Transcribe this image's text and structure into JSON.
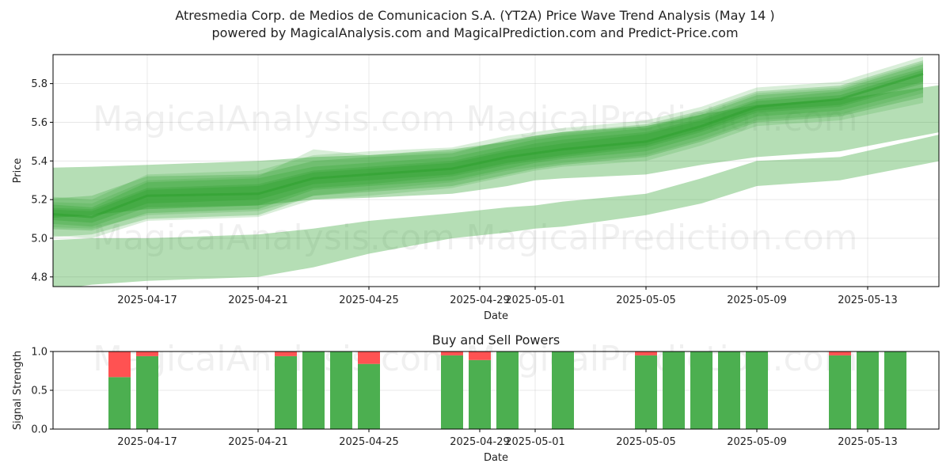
{
  "header": {
    "title": "Atresmedia Corp. de Medios de Comunicacion S.A. (YT2A) Price Wave Trend Analysis (May 14 )",
    "subtitle": "powered by MagicalAnalysis.com and MagicalPrediction.com and Predict-Price.com"
  },
  "watermarks": [
    "MagicalAnalysis.com",
    "MagicalPrediction.com"
  ],
  "colors": {
    "band": "#2ca02c",
    "buy": "#4caf50",
    "sell": "#ff5252"
  },
  "chart_data": [
    {
      "type": "area",
      "title": "",
      "xlabel": "Date",
      "ylabel": "Price",
      "x_ticks": [
        "2025-04-17",
        "2025-04-21",
        "2025-04-25",
        "2025-04-29",
        "2025-05-01",
        "2025-05-05",
        "2025-05-09",
        "2025-05-13"
      ],
      "y_ticks": [
        4.8,
        5.0,
        5.2,
        5.4,
        5.6,
        5.8
      ],
      "xlim": [
        "2025-04-12",
        "2025-05-16"
      ],
      "ylim": [
        4.75,
        5.95
      ],
      "grid": true,
      "x": [
        "2025-04-13",
        "2025-04-15",
        "2025-04-17",
        "2025-04-21",
        "2025-04-23",
        "2025-04-25",
        "2025-04-28",
        "2025-04-30",
        "2025-05-01",
        "2025-05-02",
        "2025-05-05",
        "2025-05-07",
        "2025-05-09",
        "2025-05-12",
        "2025-05-15"
      ],
      "center": [
        5.13,
        5.11,
        5.22,
        5.23,
        5.31,
        5.33,
        5.36,
        5.42,
        5.44,
        5.46,
        5.5,
        5.58,
        5.68,
        5.72,
        5.85
      ],
      "bands": [
        {
          "x_range": [
            "2025-04-12",
            "2025-05-16"
          ],
          "lower": [
            4.7,
            4.76,
            4.78,
            4.8,
            4.85,
            4.92,
            5.0,
            5.03,
            5.05,
            5.06,
            5.12,
            5.18,
            5.27,
            5.3,
            5.41
          ],
          "upper": [
            4.98,
            5.0,
            5.0,
            5.02,
            5.05,
            5.09,
            5.13,
            5.16,
            5.17,
            5.19,
            5.23,
            5.31,
            5.4,
            5.42,
            5.55
          ],
          "opacity": 0.35
        },
        {
          "x_range": [
            "2025-04-12",
            "2025-05-16"
          ],
          "lower": [
            5.09,
            5.12,
            5.15,
            5.17,
            5.2,
            5.21,
            5.23,
            5.27,
            5.3,
            5.31,
            5.33,
            5.38,
            5.42,
            5.45,
            5.56
          ],
          "upper": [
            5.36,
            5.37,
            5.38,
            5.4,
            5.42,
            5.43,
            5.46,
            5.5,
            5.53,
            5.55,
            5.58,
            5.64,
            5.69,
            5.72,
            5.8
          ],
          "opacity": 0.35
        },
        {
          "x_range": [
            "2025-04-13",
            "2025-05-15"
          ],
          "lower": [
            5.0,
            5.02,
            5.1,
            5.12,
            5.22,
            5.24,
            5.27,
            5.33,
            5.36,
            5.38,
            5.42,
            5.5,
            5.6,
            5.63,
            5.73
          ],
          "upper": [
            5.2,
            5.22,
            5.32,
            5.33,
            5.4,
            5.42,
            5.44,
            5.51,
            5.53,
            5.55,
            5.59,
            5.66,
            5.76,
            5.79,
            5.92
          ],
          "opacity": 0.25
        },
        {
          "x_range": [
            "2025-04-13",
            "2025-05-15"
          ],
          "lower": [
            5.05,
            5.04,
            5.13,
            5.15,
            5.25,
            5.27,
            5.3,
            5.36,
            5.39,
            5.41,
            5.45,
            5.53,
            5.63,
            5.66,
            5.77
          ],
          "upper": [
            5.18,
            5.16,
            5.29,
            5.31,
            5.37,
            5.39,
            5.42,
            5.48,
            5.51,
            5.53,
            5.57,
            5.64,
            5.74,
            5.77,
            5.9
          ],
          "opacity": 0.25
        },
        {
          "x_range": [
            "2025-04-13",
            "2025-05-15"
          ],
          "lower": [
            5.08,
            5.06,
            5.16,
            5.17,
            5.26,
            5.28,
            5.32,
            5.38,
            5.4,
            5.42,
            5.47,
            5.55,
            5.65,
            5.68,
            5.8
          ],
          "upper": [
            5.16,
            5.15,
            5.26,
            5.28,
            5.35,
            5.37,
            5.4,
            5.46,
            5.49,
            5.51,
            5.55,
            5.62,
            5.72,
            5.76,
            5.88
          ],
          "opacity": 0.25
        },
        {
          "x_range": [
            "2025-04-13",
            "2025-05-15"
          ],
          "lower": [
            5.02,
            5.0,
            5.09,
            5.11,
            5.2,
            5.22,
            5.26,
            5.32,
            5.35,
            5.37,
            5.4,
            5.48,
            5.58,
            5.61,
            5.7
          ],
          "upper": [
            5.22,
            5.2,
            5.33,
            5.35,
            5.43,
            5.45,
            5.47,
            5.53,
            5.55,
            5.57,
            5.61,
            5.68,
            5.78,
            5.81,
            5.94
          ],
          "opacity": 0.18
        },
        {
          "x_range": [
            "2025-04-13",
            "2025-05-15"
          ],
          "lower": [
            5.06,
            5.05,
            5.12,
            5.14,
            5.22,
            5.25,
            5.29,
            5.35,
            5.37,
            5.39,
            5.43,
            5.51,
            5.61,
            5.64,
            5.75
          ],
          "upper": [
            5.19,
            5.18,
            5.3,
            5.32,
            5.46,
            5.43,
            5.45,
            5.5,
            5.52,
            5.54,
            5.58,
            5.65,
            5.75,
            5.78,
            5.91
          ],
          "opacity": 0.18
        },
        {
          "x_range": [
            "2025-04-13",
            "2025-05-15"
          ],
          "lower": [
            5.1,
            5.08,
            5.18,
            5.2,
            5.28,
            5.3,
            5.33,
            5.39,
            5.41,
            5.43,
            5.48,
            5.56,
            5.66,
            5.69,
            5.81
          ],
          "upper": [
            5.15,
            5.14,
            5.25,
            5.27,
            5.34,
            5.36,
            5.39,
            5.45,
            5.47,
            5.49,
            5.54,
            5.61,
            5.71,
            5.74,
            5.87
          ],
          "opacity": 0.3
        }
      ]
    },
    {
      "type": "bar",
      "title": "Buy and Sell Powers",
      "xlabel": "Date",
      "ylabel": "Signal Strength",
      "x_ticks": [
        "2025-04-17",
        "2025-04-21",
        "2025-04-25",
        "2025-04-29",
        "2025-05-01",
        "2025-05-05",
        "2025-05-09",
        "2025-05-13"
      ],
      "y_ticks": [
        0.0,
        0.5,
        1.0
      ],
      "ylim": [
        0,
        1
      ],
      "grid": true,
      "x": [
        "2025-04-16",
        "2025-04-17",
        "2025-04-22",
        "2025-04-23",
        "2025-04-24",
        "2025-04-25",
        "2025-04-28",
        "2025-04-29",
        "2025-04-30",
        "2025-05-02",
        "2025-05-05",
        "2025-05-06",
        "2025-05-07",
        "2025-05-08",
        "2025-05-09",
        "2025-05-12",
        "2025-05-13",
        "2025-05-14"
      ],
      "series": [
        {
          "name": "buy",
          "values": [
            0.67,
            0.94,
            0.94,
            1.0,
            1.0,
            0.84,
            0.95,
            0.89,
            1.0,
            1.0,
            0.95,
            1.0,
            1.0,
            1.0,
            1.0,
            0.95,
            1.0,
            1.0
          ]
        },
        {
          "name": "sell",
          "values": [
            0.33,
            0.06,
            0.06,
            0.0,
            0.0,
            0.16,
            0.05,
            0.11,
            0.0,
            0.0,
            0.05,
            0.0,
            0.0,
            0.0,
            0.0,
            0.05,
            0.0,
            0.0
          ]
        }
      ]
    }
  ]
}
